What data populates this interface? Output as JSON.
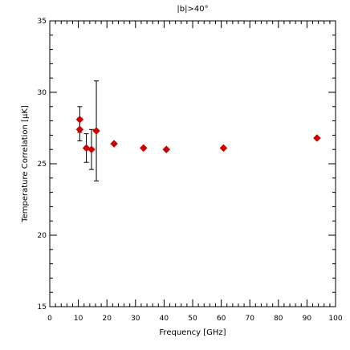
{
  "chart_data": {
    "type": "scatter",
    "title": "|b|>40°",
    "xlabel": "Frequency [GHz]",
    "ylabel": "Temperature Correlation [μK]",
    "xlim": [
      0,
      100
    ],
    "ylim": [
      15,
      35
    ],
    "x_ticks": [
      0,
      10,
      20,
      30,
      40,
      50,
      60,
      70,
      80,
      90,
      100
    ],
    "y_ticks": [
      15,
      20,
      25,
      30,
      35
    ],
    "grid": false,
    "legend": "none",
    "marker": "diamond",
    "colors": {
      "marker": "#cc0000",
      "axes": "#000000",
      "errorbar": "#000000"
    },
    "series": [
      {
        "points": [
          {
            "x": 10.5,
            "y": 27.4,
            "err": 0.8
          },
          {
            "x": 10.5,
            "y": 28.1,
            "err": 0.9
          },
          {
            "x": 12.8,
            "y": 26.1,
            "err": 1.0
          },
          {
            "x": 14.6,
            "y": 26.0,
            "err": 1.4
          },
          {
            "x": 16.3,
            "y": 27.3,
            "err": 3.5
          },
          {
            "x": 22.5,
            "y": 26.4,
            "err": 0
          },
          {
            "x": 32.8,
            "y": 26.1,
            "err": 0
          },
          {
            "x": 40.8,
            "y": 26.0,
            "err": 0
          },
          {
            "x": 60.8,
            "y": 26.1,
            "err": 0
          },
          {
            "x": 93.5,
            "y": 26.8,
            "err": 0
          }
        ]
      }
    ]
  }
}
